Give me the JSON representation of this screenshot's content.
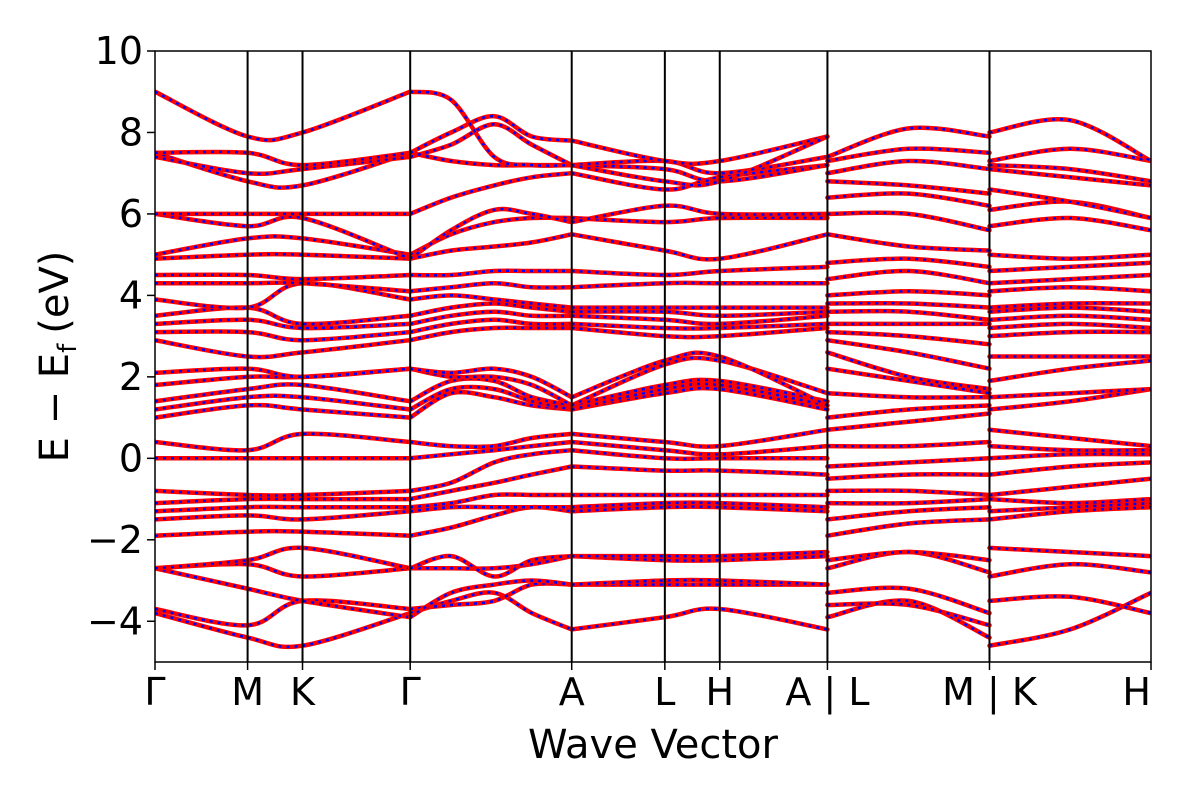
{
  "chart_data": {
    "type": "line",
    "xlabel": "Wave Vector",
    "ylabel": "E − E",
    "ylabel_subscript": "f",
    "ylabel_unit": "(eV)",
    "ylim": [
      -5,
      10
    ],
    "yticks": [
      -4,
      -2,
      0,
      2,
      4,
      6,
      8,
      10
    ],
    "ytick_labels": [
      "−4",
      "−2",
      "0",
      "2",
      "4",
      "6",
      "8",
      "10"
    ],
    "kpath_positions": [
      0,
      1.72,
      2.74,
      4.74,
      7.74,
      9.47,
      10.49,
      12.49,
      15.5,
      18.5
    ],
    "kpath_labels": [
      "Γ",
      "M",
      "K",
      "Γ",
      "A",
      "L",
      "H",
      "A | L",
      "M | K",
      "H"
    ],
    "xlim": [
      0,
      18.5
    ],
    "grid": false,
    "series_colors": [
      "#ff0000",
      "#0000ff"
    ],
    "series_styles": [
      "solid",
      "dotted"
    ],
    "segments": [
      {
        "x": [
          0,
          1.72,
          2.74,
          4.74
        ],
        "bands": [
          [
            -3.8,
            -4.4,
            -4.6,
            -3.8
          ],
          [
            -3.7,
            -4.1,
            -3.5,
            -3.7
          ],
          [
            -2.7,
            -3.2,
            -3.5,
            -3.9
          ],
          [
            -2.7,
            -2.6,
            -2.9,
            -2.7
          ],
          [
            -2.7,
            -2.5,
            -2.2,
            -2.7
          ],
          [
            -1.9,
            -1.8,
            -1.8,
            -1.9
          ],
          [
            -1.5,
            -1.4,
            -1.5,
            -1.3
          ],
          [
            -1.3,
            -1.2,
            -1.2,
            -1.2
          ],
          [
            -1.1,
            -1.0,
            -1.0,
            -1.0
          ],
          [
            -0.8,
            -0.9,
            -0.9,
            -0.8
          ],
          [
            0.0,
            0.0,
            0.0,
            0.0
          ],
          [
            0.4,
            0.2,
            0.6,
            0.4
          ],
          [
            1.0,
            1.3,
            1.2,
            1.0
          ],
          [
            1.2,
            1.5,
            1.5,
            1.2
          ],
          [
            1.4,
            1.7,
            1.8,
            1.4
          ],
          [
            1.8,
            2.0,
            2.0,
            2.2
          ],
          [
            2.1,
            2.2,
            2.0,
            2.2
          ],
          [
            2.9,
            2.5,
            2.6,
            2.9
          ],
          [
            3.1,
            3.1,
            2.9,
            3.1
          ],
          [
            3.3,
            3.4,
            3.2,
            3.3
          ],
          [
            3.5,
            3.7,
            3.3,
            3.5
          ],
          [
            3.9,
            3.7,
            4.3,
            3.9
          ],
          [
            4.3,
            4.3,
            4.3,
            4.1
          ],
          [
            4.5,
            4.5,
            4.4,
            4.5
          ],
          [
            4.9,
            5.0,
            5.0,
            4.9
          ],
          [
            5.0,
            5.4,
            5.4,
            5.0
          ],
          [
            6.0,
            5.7,
            5.9,
            4.9
          ],
          [
            6.0,
            6.0,
            6.0,
            6.0
          ],
          [
            7.5,
            6.8,
            6.7,
            7.5
          ],
          [
            7.4,
            7.0,
            7.1,
            7.4
          ],
          [
            7.5,
            7.5,
            7.2,
            7.5
          ],
          [
            9.0,
            7.9,
            8.0,
            9.0
          ]
        ]
      },
      {
        "x": [
          4.74,
          5.5,
          6.3,
          7.0,
          7.74
        ],
        "bands": [
          [
            -3.8,
            -3.5,
            -3.3,
            -3.8,
            -4.2
          ],
          [
            -3.7,
            -3.6,
            -3.5,
            -3.1,
            -3.1
          ],
          [
            -3.9,
            -3.3,
            -3.1,
            -3.0,
            -3.1
          ],
          [
            -2.7,
            -2.7,
            -2.7,
            -2.6,
            -2.4
          ],
          [
            -2.7,
            -2.4,
            -2.9,
            -2.5,
            -2.4
          ],
          [
            -1.9,
            -1.7,
            -1.4,
            -1.2,
            -1.3
          ],
          [
            -1.3,
            -1.2,
            -1.2,
            -1.2,
            -1.2
          ],
          [
            -1.2,
            -1.1,
            -0.9,
            -0.9,
            -0.9
          ],
          [
            -1.0,
            -0.8,
            -0.6,
            -0.4,
            -0.2
          ],
          [
            -0.8,
            -0.6,
            -0.1,
            0.1,
            0.2
          ],
          [
            0.0,
            0.1,
            0.2,
            0.3,
            0.4
          ],
          [
            0.4,
            0.3,
            0.3,
            0.5,
            0.6
          ],
          [
            1.0,
            1.6,
            1.5,
            1.3,
            1.2
          ],
          [
            1.2,
            1.7,
            1.7,
            1.4,
            1.2
          ],
          [
            1.4,
            1.9,
            1.9,
            1.5,
            1.3
          ],
          [
            2.2,
            2.0,
            2.0,
            1.8,
            1.3
          ],
          [
            2.2,
            2.1,
            2.2,
            2.0,
            1.5
          ],
          [
            2.9,
            3.1,
            3.2,
            3.2,
            3.2
          ],
          [
            3.1,
            3.3,
            3.4,
            3.3,
            3.3
          ],
          [
            3.3,
            3.5,
            3.6,
            3.5,
            3.5
          ],
          [
            3.5,
            3.7,
            3.8,
            3.7,
            3.6
          ],
          [
            3.9,
            4.0,
            3.9,
            3.8,
            3.7
          ],
          [
            4.1,
            4.2,
            4.3,
            4.2,
            4.2
          ],
          [
            4.5,
            4.5,
            4.6,
            4.6,
            4.6
          ],
          [
            4.9,
            5.1,
            5.2,
            5.3,
            5.5
          ],
          [
            5.0,
            5.5,
            5.8,
            5.9,
            5.9
          ],
          [
            4.9,
            5.6,
            6.1,
            6.0,
            5.8
          ],
          [
            6.0,
            6.4,
            6.7,
            6.9,
            7.0
          ],
          [
            7.5,
            7.3,
            7.2,
            7.2,
            7.2
          ],
          [
            7.4,
            7.7,
            8.2,
            7.7,
            7.2
          ],
          [
            7.5,
            8.0,
            8.4,
            7.9,
            7.8
          ],
          [
            9.0,
            8.8,
            7.4,
            7.2,
            7.2
          ]
        ]
      },
      {
        "x": [
          7.74,
          9.47,
          10.49,
          12.49
        ],
        "bands": [
          [
            -4.2,
            -3.9,
            -3.7,
            -4.2
          ],
          [
            -3.1,
            -3.1,
            -3.1,
            -3.1
          ],
          [
            -3.1,
            -3.0,
            -3.0,
            -3.1
          ],
          [
            -2.4,
            -2.5,
            -2.5,
            -2.4
          ],
          [
            -2.4,
            -2.4,
            -2.4,
            -2.3
          ],
          [
            -1.3,
            -1.2,
            -1.2,
            -1.3
          ],
          [
            -1.2,
            -1.1,
            -1.1,
            -1.2
          ],
          [
            -0.9,
            -0.9,
            -0.9,
            -0.9
          ],
          [
            -0.2,
            -0.3,
            -0.3,
            -0.4
          ],
          [
            0.2,
            0.0,
            0.0,
            0.0
          ],
          [
            0.4,
            0.2,
            0.1,
            0.3
          ],
          [
            0.6,
            0.4,
            0.3,
            0.7
          ],
          [
            1.2,
            1.6,
            1.7,
            1.2
          ],
          [
            1.2,
            1.7,
            1.8,
            1.3
          ],
          [
            1.3,
            1.8,
            1.9,
            1.4
          ],
          [
            1.3,
            2.3,
            2.4,
            1.6
          ],
          [
            1.5,
            2.4,
            2.5,
            1.3
          ],
          [
            3.2,
            3.0,
            3.0,
            3.2
          ],
          [
            3.3,
            3.2,
            3.2,
            3.3
          ],
          [
            3.5,
            3.4,
            3.3,
            3.5
          ],
          [
            3.6,
            3.6,
            3.5,
            3.6
          ],
          [
            3.7,
            3.7,
            3.7,
            3.7
          ],
          [
            4.2,
            4.3,
            4.3,
            4.3
          ],
          [
            4.6,
            4.5,
            4.6,
            4.7
          ],
          [
            5.5,
            5.1,
            4.9,
            5.5
          ],
          [
            5.9,
            5.8,
            5.9,
            5.9
          ],
          [
            5.8,
            6.2,
            6.0,
            6.0
          ],
          [
            7.0,
            6.6,
            6.9,
            7.2
          ],
          [
            7.2,
            7.1,
            6.8,
            7.2
          ],
          [
            7.2,
            7.3,
            7.0,
            7.4
          ],
          [
            7.8,
            7.3,
            7.3,
            7.9
          ],
          [
            7.2,
            6.8,
            6.8,
            7.9
          ]
        ]
      },
      {
        "x": [
          12.49,
          14.0,
          15.5
        ],
        "bands": [
          [
            -3.9,
            -3.5,
            -4.4
          ],
          [
            -3.6,
            -3.6,
            -4.1
          ],
          [
            -3.3,
            -3.2,
            -3.8
          ],
          [
            -2.7,
            -2.3,
            -2.8
          ],
          [
            -2.5,
            -2.3,
            -2.5
          ],
          [
            -1.9,
            -1.6,
            -1.5
          ],
          [
            -1.5,
            -1.3,
            -1.2
          ],
          [
            -1.1,
            -1.1,
            -1.0
          ],
          [
            -0.8,
            -0.8,
            -0.9
          ],
          [
            -0.5,
            -0.4,
            -0.4
          ],
          [
            -0.2,
            -0.1,
            0.0
          ],
          [
            0.3,
            0.3,
            0.4
          ],
          [
            0.7,
            0.9,
            1.1
          ],
          [
            1.0,
            1.2,
            1.3
          ],
          [
            1.6,
            1.5,
            1.5
          ],
          [
            2.2,
            1.9,
            1.6
          ],
          [
            2.6,
            2.0,
            1.7
          ],
          [
            2.9,
            2.6,
            2.2
          ],
          [
            3.1,
            3.0,
            2.8
          ],
          [
            3.3,
            3.3,
            3.3
          ],
          [
            3.6,
            3.6,
            3.4
          ],
          [
            3.8,
            3.8,
            3.7
          ],
          [
            4.0,
            4.1,
            4.0
          ],
          [
            4.4,
            4.6,
            4.3
          ],
          [
            4.8,
            4.9,
            4.7
          ],
          [
            5.5,
            5.2,
            5.1
          ],
          [
            6.0,
            6.0,
            5.6
          ],
          [
            6.4,
            6.5,
            6.2
          ],
          [
            6.8,
            6.7,
            6.5
          ],
          [
            7.0,
            7.3,
            7.1
          ],
          [
            7.3,
            7.6,
            7.5
          ],
          [
            7.4,
            8.1,
            7.9
          ]
        ]
      },
      {
        "x": [
          15.5,
          17.0,
          18.5
        ],
        "bands": [
          [
            -4.6,
            -4.2,
            -3.3
          ],
          [
            -3.5,
            -3.4,
            -3.8
          ],
          [
            -2.9,
            -2.6,
            -2.8
          ],
          [
            -2.2,
            -2.3,
            -2.4
          ],
          [
            -1.5,
            -1.3,
            -1.2
          ],
          [
            -1.3,
            -1.2,
            -1.1
          ],
          [
            -1.0,
            -1.1,
            -1.0
          ],
          [
            -0.9,
            -0.7,
            -0.5
          ],
          [
            -0.4,
            -0.2,
            -0.1
          ],
          [
            0.0,
            0.1,
            0.1
          ],
          [
            0.3,
            0.2,
            0.2
          ],
          [
            0.7,
            0.5,
            0.3
          ],
          [
            1.2,
            1.4,
            1.7
          ],
          [
            1.5,
            1.6,
            1.7
          ],
          [
            1.9,
            2.2,
            2.4
          ],
          [
            2.5,
            2.5,
            2.5
          ],
          [
            3.0,
            3.1,
            3.1
          ],
          [
            3.2,
            3.3,
            3.2
          ],
          [
            3.4,
            3.5,
            3.4
          ],
          [
            3.6,
            3.7,
            3.6
          ],
          [
            3.7,
            3.8,
            3.8
          ],
          [
            4.1,
            4.2,
            4.1
          ],
          [
            4.3,
            4.4,
            4.5
          ],
          [
            4.6,
            4.7,
            4.8
          ],
          [
            5.0,
            4.9,
            5.0
          ],
          [
            5.7,
            5.9,
            5.6
          ],
          [
            6.1,
            6.3,
            5.9
          ],
          [
            6.6,
            6.3,
            5.9
          ],
          [
            7.1,
            6.9,
            6.7
          ],
          [
            7.2,
            7.1,
            6.8
          ],
          [
            7.3,
            7.6,
            7.3
          ],
          [
            8.0,
            8.3,
            7.3
          ]
        ]
      }
    ]
  }
}
